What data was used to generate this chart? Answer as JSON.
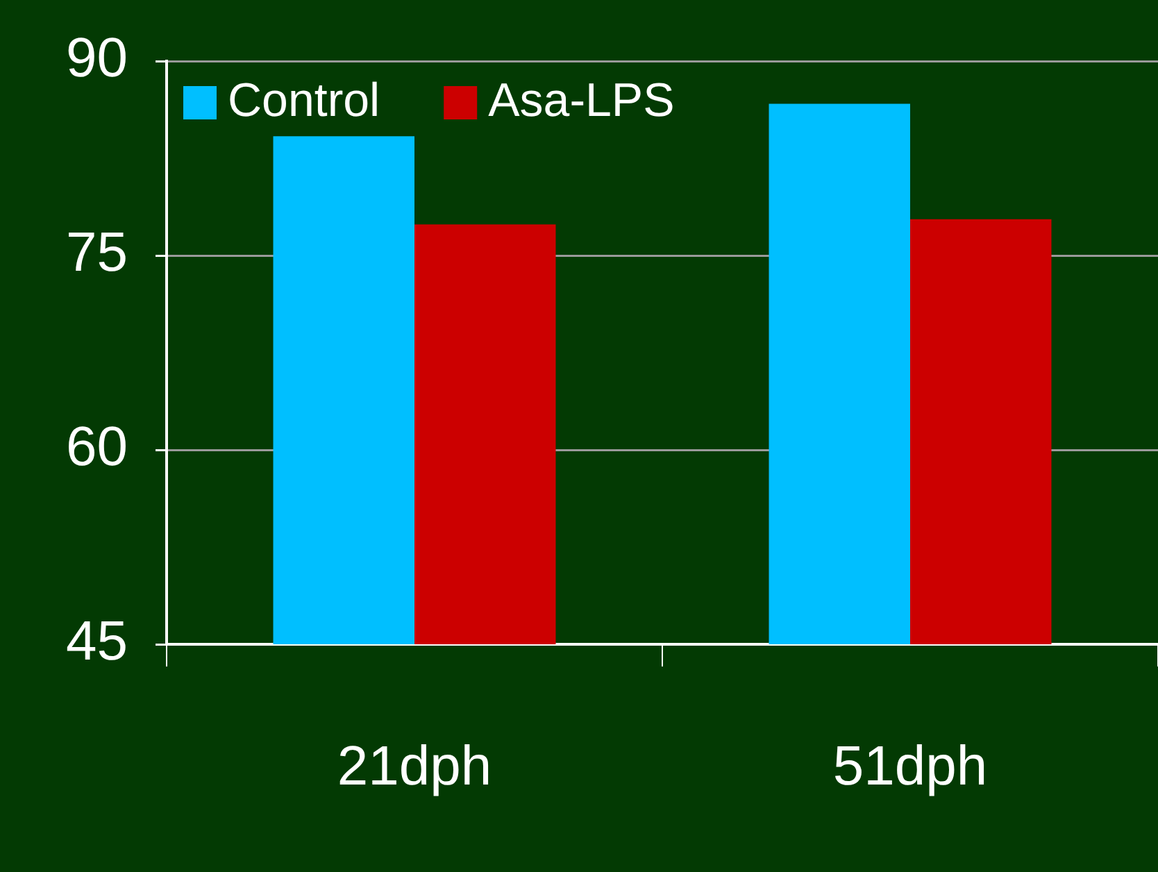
{
  "chart_data": {
    "type": "bar",
    "categories": [
      "21dph",
      "51dph"
    ],
    "series": [
      {
        "name": "Control",
        "color": "#00bfff",
        "values": [
          84.2,
          86.7
        ]
      },
      {
        "name": "Asa-LPS",
        "color": "#cc0000",
        "values": [
          77.4,
          77.8
        ]
      }
    ],
    "ylim": [
      45,
      90
    ],
    "yticks": [
      45,
      60,
      75,
      90
    ],
    "grid": "y",
    "legend": "top left"
  }
}
